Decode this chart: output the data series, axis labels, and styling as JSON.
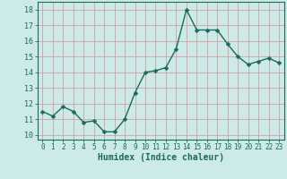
{
  "x": [
    0,
    1,
    2,
    3,
    4,
    5,
    6,
    7,
    8,
    9,
    10,
    11,
    12,
    13,
    14,
    15,
    16,
    17,
    18,
    19,
    20,
    21,
    22,
    23
  ],
  "y": [
    11.5,
    11.2,
    11.8,
    11.5,
    10.8,
    10.9,
    10.2,
    10.2,
    11.0,
    12.7,
    14.0,
    14.1,
    14.3,
    15.5,
    18.0,
    16.7,
    16.7,
    16.7,
    15.8,
    15.0,
    14.5,
    14.7,
    14.9,
    14.6
  ],
  "line_color": "#1a6b5a",
  "marker": "D",
  "marker_size": 2.5,
  "bg_color": "#cceae7",
  "grid_color": "#b8d4d0",
  "axis_color": "#1a6b5a",
  "tick_color": "#1a6b5a",
  "xlabel": "Humidex (Indice chaleur)",
  "xlim": [
    -0.5,
    23.5
  ],
  "ylim": [
    9.7,
    18.5
  ],
  "yticks": [
    10,
    11,
    12,
    13,
    14,
    15,
    16,
    17,
    18
  ],
  "xticks": [
    0,
    1,
    2,
    3,
    4,
    5,
    6,
    7,
    8,
    9,
    10,
    11,
    12,
    13,
    14,
    15,
    16,
    17,
    18,
    19,
    20,
    21,
    22,
    23
  ],
  "xlabel_fontsize": 7.0,
  "ytick_fontsize": 6.0,
  "xtick_fontsize": 5.5
}
